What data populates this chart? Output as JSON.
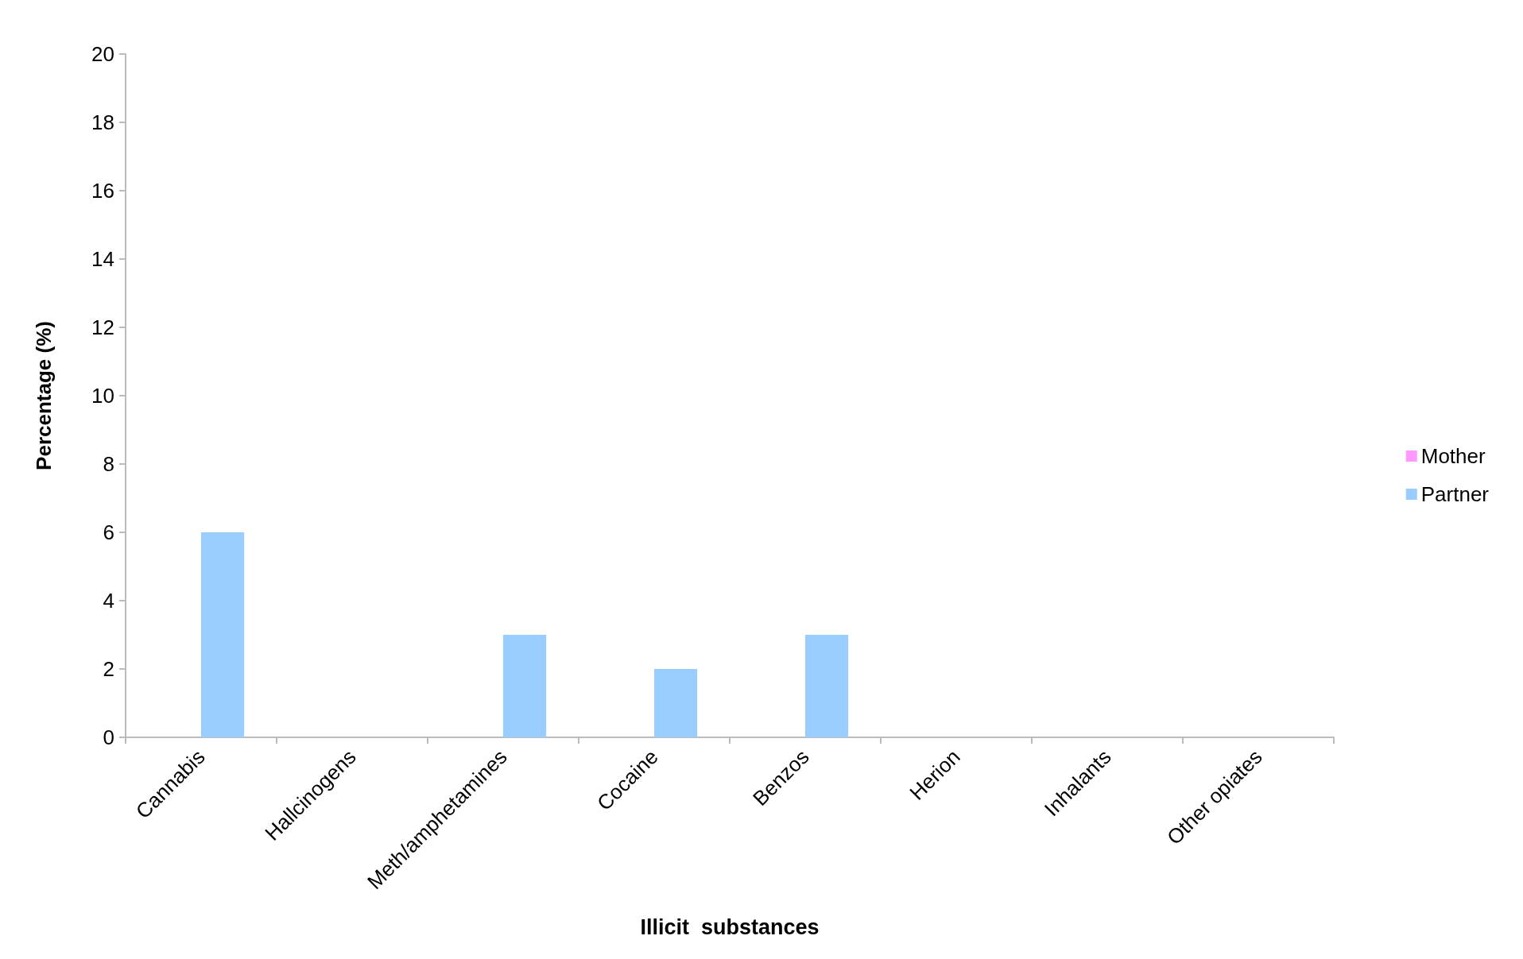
{
  "chart_data": {
    "type": "bar",
    "xlabel": "Illicit  substances",
    "ylabel": "Percentage (%)",
    "categories": [
      "Cannabis",
      "Hallcinogens",
      "Meth/amphetamines",
      "Cocaine",
      "Benzos",
      "Herion",
      "Inhalants",
      "Other opiates"
    ],
    "series": [
      {
        "name": "Mother",
        "color": "#ff99ff",
        "values": [
          0,
          0,
          0,
          0,
          0,
          0,
          0,
          0
        ]
      },
      {
        "name": "Partner",
        "color": "#99ccff",
        "values": [
          6,
          0,
          3,
          2,
          3,
          0,
          0,
          0
        ]
      }
    ],
    "ylim": [
      0,
      20
    ],
    "yticks": [
      0,
      2,
      4,
      6,
      8,
      10,
      12,
      14,
      16,
      18,
      20
    ],
    "grid": false,
    "legend": "right"
  }
}
